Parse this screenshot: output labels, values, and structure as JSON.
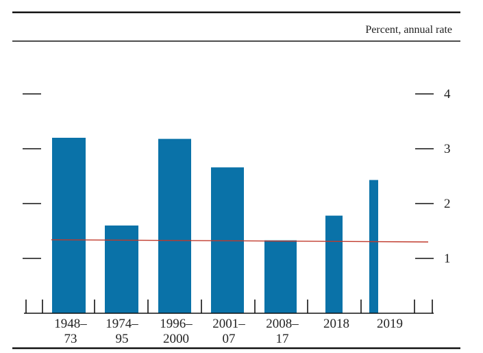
{
  "chart_data": {
    "type": "bar",
    "unit_label": "Percent, annual rate",
    "categories": [
      [
        "1948–",
        "73"
      ],
      [
        "1974–",
        "95"
      ],
      [
        "1996–",
        "2000"
      ],
      [
        "2001–",
        "07"
      ],
      [
        "2008–",
        "17"
      ],
      [
        "2018"
      ],
      [
        "2019"
      ]
    ],
    "values": [
      3.2,
      1.6,
      3.18,
      2.66,
      1.33,
      1.78,
      2.43
    ],
    "reference_line": {
      "y_start": 1.34,
      "y_end": 1.3,
      "color": "#c0392b"
    },
    "y_ticks": [
      1,
      2,
      3,
      4
    ],
    "ylim": [
      0,
      4.6
    ],
    "bar_color": "#0a72a8",
    "grid": false
  }
}
